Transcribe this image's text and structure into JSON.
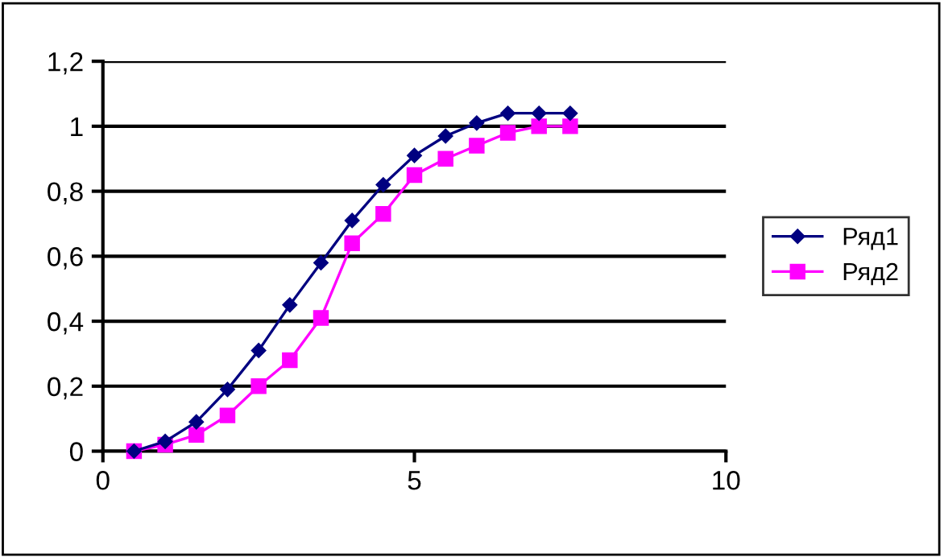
{
  "chart_data": {
    "type": "line",
    "x": [
      0.5,
      1,
      1.5,
      2,
      2.5,
      3,
      3.5,
      4,
      4.5,
      5,
      5.5,
      6,
      6.5,
      7,
      7.5
    ],
    "series": [
      {
        "name": "Ряд1",
        "color": "#000080",
        "marker": "diamond",
        "values": [
          0.0,
          0.03,
          0.09,
          0.19,
          0.31,
          0.45,
          0.58,
          0.71,
          0.82,
          0.91,
          0.97,
          1.01,
          1.04,
          1.04,
          1.04
        ]
      },
      {
        "name": "Ряд2",
        "color": "#ff00ff",
        "marker": "square",
        "values": [
          0.0,
          0.02,
          0.05,
          0.11,
          0.2,
          0.28,
          0.41,
          0.64,
          0.73,
          0.85,
          0.9,
          0.94,
          0.98,
          1.0,
          1.0
        ]
      }
    ],
    "xlim": [
      0,
      10
    ],
    "xticks": [
      0,
      5,
      10
    ],
    "ylim": [
      0,
      1.2
    ],
    "yticks": [
      0,
      {
        "value": 0.2,
        "label": "0,2"
      },
      {
        "value": 0.4,
        "label": "0,4"
      },
      {
        "value": 0.6,
        "label": "0,6"
      },
      {
        "value": 0.8,
        "label": "0,8"
      },
      1,
      {
        "value": 1.2,
        "label": "1,2"
      }
    ],
    "grid": "y",
    "legend": "right",
    "line_style": "solid"
  }
}
